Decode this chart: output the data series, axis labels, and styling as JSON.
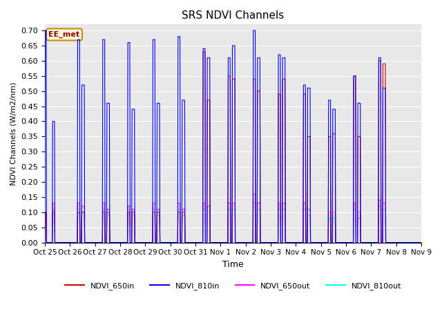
{
  "title": "SRS NDVI Channels",
  "ylabel": "NDVI Channels (W/m2/nm)",
  "xlabel": "Time",
  "annotation": "EE_met",
  "ylim": [
    0.0,
    0.72
  ],
  "yticks": [
    0.0,
    0.05,
    0.1,
    0.15,
    0.2,
    0.25,
    0.3,
    0.35,
    0.4,
    0.45,
    0.5,
    0.55,
    0.6,
    0.65,
    0.7
  ],
  "xtick_labels": [
    "Oct 25",
    "Oct 26",
    "Oct 27",
    "Oct 28",
    "Oct 29",
    "Oct 30",
    "Oct 31",
    "Nov 1",
    "Nov 2",
    "Nov 3",
    "Nov 4",
    "Nov 5",
    "Nov 6",
    "Nov 7",
    "Nov 8",
    "Nov 9"
  ],
  "colors": {
    "NDVI_650in": "#cc0000",
    "NDVI_810in": "#0000ee",
    "NDVI_650out": "#ff00ff",
    "NDVI_810out": "#00ffff"
  },
  "bg_color": "#e8e8e8",
  "pulse_data": [
    {
      "day": 0,
      "t1": 0.0,
      "t2": 1.5,
      "v810in": 0.7,
      "v650in": 0.1,
      "v650out": 0.1,
      "v810out": 0.09
    },
    {
      "day": 0,
      "t1": 7.0,
      "t2": 9.5,
      "v810in": 0.4,
      "v650in": 0.1,
      "v650out": 0.13,
      "v810out": 0.11
    },
    {
      "day": 1,
      "t1": 7.0,
      "t2": 9.5,
      "v810in": 0.67,
      "v650in": 0.1,
      "v650out": 0.13,
      "v810out": 0.11
    },
    {
      "day": 1,
      "t1": 11.0,
      "t2": 14.0,
      "v810in": 0.52,
      "v650in": 0.1,
      "v650out": 0.12,
      "v810out": 0.1
    },
    {
      "day": 2,
      "t1": 7.0,
      "t2": 9.5,
      "v810in": 0.67,
      "v650in": 0.1,
      "v650out": 0.13,
      "v810out": 0.11
    },
    {
      "day": 2,
      "t1": 11.0,
      "t2": 14.0,
      "v810in": 0.46,
      "v650in": 0.1,
      "v650out": 0.11,
      "v810out": 0.09
    },
    {
      "day": 3,
      "t1": 7.0,
      "t2": 9.5,
      "v810in": 0.66,
      "v650in": 0.1,
      "v650out": 0.12,
      "v810out": 0.1
    },
    {
      "day": 3,
      "t1": 11.0,
      "t2": 14.0,
      "v810in": 0.44,
      "v650in": 0.1,
      "v650out": 0.11,
      "v810out": 0.09
    },
    {
      "day": 4,
      "t1": 7.0,
      "t2": 9.5,
      "v810in": 0.67,
      "v650in": 0.1,
      "v650out": 0.13,
      "v810out": 0.11
    },
    {
      "day": 4,
      "t1": 11.0,
      "t2": 14.0,
      "v810in": 0.46,
      "v650in": 0.1,
      "v650out": 0.11,
      "v810out": 0.09
    },
    {
      "day": 5,
      "t1": 7.0,
      "t2": 9.5,
      "v810in": 0.68,
      "v650in": 0.1,
      "v650out": 0.13,
      "v810out": 0.11
    },
    {
      "day": 5,
      "t1": 11.0,
      "t2": 14.0,
      "v810in": 0.47,
      "v650in": 0.1,
      "v650out": 0.11,
      "v810out": 0.09
    },
    {
      "day": 6,
      "t1": 7.0,
      "t2": 9.5,
      "v810in": 0.64,
      "v650in": 0.63,
      "v650out": 0.13,
      "v810out": 0.11
    },
    {
      "day": 6,
      "t1": 11.0,
      "t2": 14.0,
      "v810in": 0.61,
      "v650in": 0.47,
      "v650out": 0.12,
      "v810out": 0.1
    },
    {
      "day": 7,
      "t1": 7.0,
      "t2": 9.5,
      "v810in": 0.61,
      "v650in": 0.55,
      "v650out": 0.13,
      "v810out": 0.11
    },
    {
      "day": 7,
      "t1": 11.0,
      "t2": 14.0,
      "v810in": 0.65,
      "v650in": 0.54,
      "v650out": 0.13,
      "v810out": 0.11
    },
    {
      "day": 8,
      "t1": 7.0,
      "t2": 9.5,
      "v810in": 0.7,
      "v650in": 0.54,
      "v650out": 0.16,
      "v810out": 0.13
    },
    {
      "day": 8,
      "t1": 11.0,
      "t2": 14.0,
      "v810in": 0.61,
      "v650in": 0.5,
      "v650out": 0.13,
      "v810out": 0.11
    },
    {
      "day": 9,
      "t1": 7.0,
      "t2": 9.5,
      "v810in": 0.62,
      "v650in": 0.49,
      "v650out": 0.13,
      "v810out": 0.11
    },
    {
      "day": 9,
      "t1": 11.0,
      "t2": 14.0,
      "v810in": 0.61,
      "v650in": 0.54,
      "v650out": 0.13,
      "v810out": 0.11
    },
    {
      "day": 10,
      "t1": 7.0,
      "t2": 9.5,
      "v810in": 0.52,
      "v650in": 0.49,
      "v650out": 0.13,
      "v810out": 0.11
    },
    {
      "day": 10,
      "t1": 11.0,
      "t2": 14.0,
      "v810in": 0.51,
      "v650in": 0.35,
      "v650out": 0.11,
      "v810out": 0.09
    },
    {
      "day": 11,
      "t1": 7.0,
      "t2": 9.5,
      "v810in": 0.47,
      "v650in": 0.35,
      "v650out": 0.1,
      "v810out": 0.08
    },
    {
      "day": 11,
      "t1": 11.0,
      "t2": 14.0,
      "v810in": 0.44,
      "v650in": 0.36,
      "v650out": 0.1,
      "v810out": 0.08
    },
    {
      "day": 12,
      "t1": 7.0,
      "t2": 9.5,
      "v810in": 0.55,
      "v650in": 0.55,
      "v650out": 0.13,
      "v810out": 0.11
    },
    {
      "day": 12,
      "t1": 11.0,
      "t2": 14.0,
      "v810in": 0.46,
      "v650in": 0.35,
      "v650out": 0.1,
      "v810out": 0.08
    },
    {
      "day": 13,
      "t1": 7.0,
      "t2": 9.5,
      "v810in": 0.61,
      "v650in": 0.6,
      "v650out": 0.14,
      "v810out": 0.12
    },
    {
      "day": 13,
      "t1": 11.0,
      "t2": 14.0,
      "v810in": 0.51,
      "v650in": 0.59,
      "v650out": 0.13,
      "v810out": 0.11
    }
  ]
}
